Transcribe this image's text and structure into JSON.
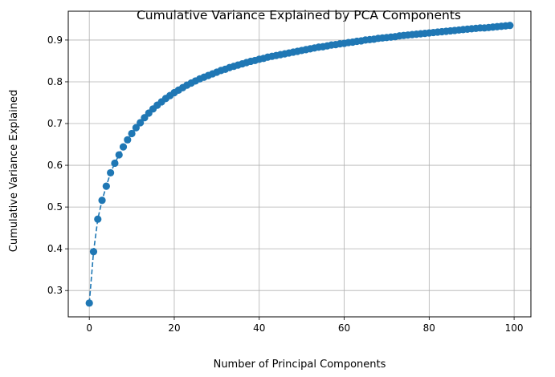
{
  "chart_data": {
    "type": "line",
    "title": "Cumulative Variance Explained by PCA Components",
    "xlabel": "Number of Principal Components",
    "ylabel": "Cumulative Variance Explained",
    "xlim": [
      -4.95,
      103.95
    ],
    "ylim": [
      0.237,
      0.969
    ],
    "xticks": [
      0,
      20,
      40,
      60,
      80,
      100
    ],
    "yticks": [
      0.3,
      0.4,
      0.5,
      0.6,
      0.7,
      0.8,
      0.9
    ],
    "ytick_labels": [
      "0.3",
      "0.4",
      "0.5",
      "0.6",
      "0.7",
      "0.8",
      "0.9"
    ],
    "grid": true,
    "line_style": "dashed",
    "marker": "circle",
    "color": "#1f77b4",
    "x": [
      0,
      1,
      2,
      3,
      4,
      5,
      6,
      7,
      8,
      9,
      10,
      11,
      12,
      13,
      14,
      15,
      16,
      17,
      18,
      19,
      20,
      21,
      22,
      23,
      24,
      25,
      26,
      27,
      28,
      29,
      30,
      31,
      32,
      33,
      34,
      35,
      36,
      37,
      38,
      39,
      40,
      41,
      42,
      43,
      44,
      45,
      46,
      47,
      48,
      49,
      50,
      51,
      52,
      53,
      54,
      55,
      56,
      57,
      58,
      59,
      60,
      61,
      62,
      63,
      64,
      65,
      66,
      67,
      68,
      69,
      70,
      71,
      72,
      73,
      74,
      75,
      76,
      77,
      78,
      79,
      80,
      81,
      82,
      83,
      84,
      85,
      86,
      87,
      88,
      89,
      90,
      91,
      92,
      93,
      94,
      95,
      96,
      97,
      98,
      99
    ],
    "y": [
      0.27,
      0.393,
      0.471,
      0.516,
      0.55,
      0.582,
      0.605,
      0.625,
      0.644,
      0.661,
      0.676,
      0.69,
      0.702,
      0.714,
      0.725,
      0.735,
      0.744,
      0.752,
      0.76,
      0.767,
      0.774,
      0.78,
      0.786,
      0.792,
      0.797,
      0.802,
      0.807,
      0.811,
      0.815,
      0.819,
      0.823,
      0.827,
      0.83,
      0.834,
      0.837,
      0.84,
      0.843,
      0.846,
      0.849,
      0.851,
      0.854,
      0.856,
      0.859,
      0.861,
      0.863,
      0.865,
      0.867,
      0.869,
      0.871,
      0.873,
      0.875,
      0.877,
      0.879,
      0.881,
      0.883,
      0.884,
      0.886,
      0.888,
      0.889,
      0.891,
      0.892,
      0.894,
      0.895,
      0.897,
      0.898,
      0.9,
      0.901,
      0.902,
      0.904,
      0.905,
      0.906,
      0.907,
      0.908,
      0.91,
      0.911,
      0.912,
      0.913,
      0.914,
      0.915,
      0.916,
      0.917,
      0.918,
      0.919,
      0.92,
      0.921,
      0.922,
      0.923,
      0.924,
      0.925,
      0.926,
      0.927,
      0.928,
      0.929,
      0.929,
      0.93,
      0.931,
      0.932,
      0.933,
      0.934,
      0.935
    ]
  }
}
